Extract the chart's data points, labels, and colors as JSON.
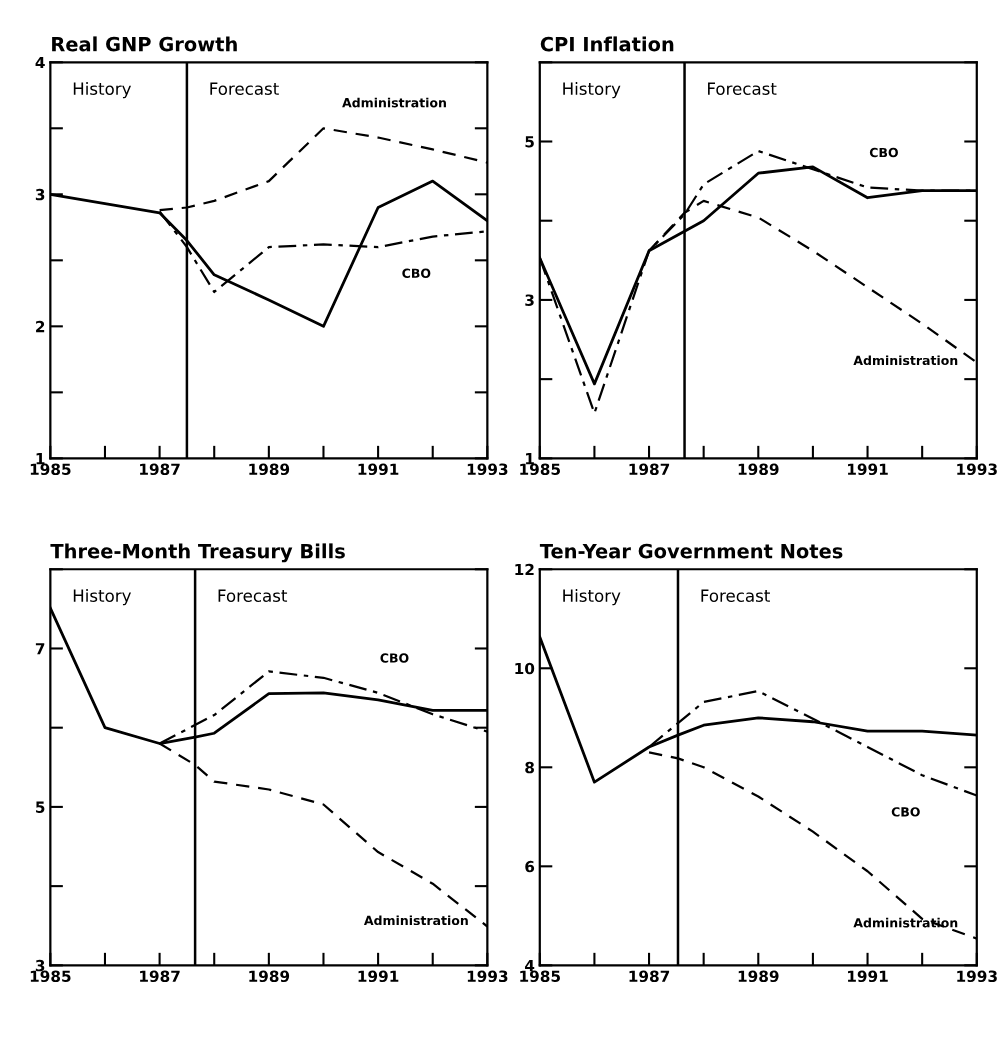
{
  "chart_data": [
    {
      "type": "line",
      "title": "Real GNP Growth",
      "xlim": [
        1985,
        1993
      ],
      "ylim": [
        1,
        4
      ],
      "xticks": [
        1985,
        {
          "value": 1986,
          "label": null
        },
        1987,
        {
          "value": 1988,
          "label": null
        },
        1989,
        {
          "value": 1990,
          "label": null
        },
        1991,
        {
          "value": 1992,
          "label": null
        },
        1993
      ],
      "yticks": [
        1,
        {
          "value": 1.5,
          "label": null
        },
        2,
        {
          "value": 2.5,
          "label": null
        },
        3,
        {
          "value": 3.5,
          "label": null
        },
        4
      ],
      "ref_lines": [
        {
          "axis": "x",
          "value": 1987.5,
          "color": "#000000"
        }
      ],
      "annotations": [
        "History",
        "Forecast"
      ],
      "grid": false,
      "legend": false,
      "series": [
        {
          "color": "#000000",
          "line_style": "solid",
          "x": [
            1985,
            1986,
            1987,
            1987.5,
            1988,
            1989,
            1990,
            1991,
            1992,
            1993
          ],
          "values": [
            3.0,
            2.93,
            2.86,
            2.65,
            2.39,
            2.2,
            2.0,
            2.9,
            3.1,
            2.8
          ]
        },
        {
          "name": "Administration",
          "color": "#000000",
          "line_style": "dashed",
          "x": [
            1987,
            1987.5,
            1988,
            1989,
            1990,
            1991,
            1992,
            1993
          ],
          "values": [
            2.88,
            2.9,
            2.95,
            3.1,
            3.5,
            3.43,
            3.34,
            3.24
          ]
        },
        {
          "name": "CBO",
          "color": "#000000",
          "line_style": "dashdot",
          "x": [
            1987,
            1987.5,
            1988,
            1989,
            1990,
            1991,
            1992,
            1993
          ],
          "values": [
            2.87,
            2.6,
            2.26,
            2.6,
            2.62,
            2.6,
            2.68,
            2.72
          ]
        }
      ]
    },
    {
      "type": "line",
      "title": "CPI Inflation",
      "xlim": [
        1985,
        1993
      ],
      "ylim": [
        1,
        6
      ],
      "xticks": [
        1985,
        {
          "value": 1986,
          "label": null
        },
        1987,
        {
          "value": 1988,
          "label": null
        },
        1989,
        {
          "value": 1990,
          "label": null
        },
        1991,
        {
          "value": 1992,
          "label": null
        },
        1993
      ],
      "yticks": [
        1,
        {
          "value": 2,
          "label": null
        },
        3,
        {
          "value": 4,
          "label": null
        },
        5,
        {
          "value": 6,
          "label": null
        }
      ],
      "ref_lines": [
        {
          "axis": "x",
          "value": 1987.65,
          "color": "#000000"
        }
      ],
      "annotations": [
        "History",
        "Forecast"
      ],
      "grid": false,
      "legend": false,
      "series": [
        {
          "color": "#000000",
          "line_style": "solid",
          "x": [
            1985,
            1986,
            1987,
            1988,
            1989,
            1990,
            1991,
            1992,
            1993
          ],
          "values": [
            3.53,
            1.94,
            3.62,
            4.0,
            4.6,
            4.68,
            4.29,
            4.38,
            4.38
          ]
        },
        {
          "name": "CBO",
          "color": "#000000",
          "line_style": "dashdot",
          "x": [
            1985,
            1986,
            1987,
            1987.65,
            1988,
            1989,
            1990,
            1991,
            1992,
            1993
          ],
          "values": [
            3.53,
            1.57,
            3.62,
            4.08,
            4.46,
            4.88,
            4.65,
            4.42,
            4.38,
            4.38
          ]
        },
        {
          "name": "Administration",
          "color": "#000000",
          "line_style": "dashed",
          "x": [
            1987,
            1987.65,
            1988,
            1989,
            1990,
            1991,
            1992,
            1993
          ],
          "values": [
            3.62,
            4.1,
            4.25,
            4.04,
            3.62,
            3.16,
            2.7,
            2.21
          ]
        }
      ]
    },
    {
      "type": "line",
      "title": "Three-Month Treasury Bills",
      "xlim": [
        1985,
        1993
      ],
      "ylim": [
        3,
        8
      ],
      "xticks": [
        1985,
        {
          "value": 1986,
          "label": null
        },
        1987,
        {
          "value": 1988,
          "label": null
        },
        1989,
        {
          "value": 1990,
          "label": null
        },
        1991,
        {
          "value": 1992,
          "label": null
        },
        1993
      ],
      "yticks": [
        3,
        {
          "value": 4,
          "label": null
        },
        5,
        {
          "value": 6,
          "label": null
        },
        7,
        {
          "value": 8,
          "label": null
        }
      ],
      "ref_lines": [
        {
          "axis": "x",
          "value": 1987.65,
          "color": "#000000"
        }
      ],
      "annotations": [
        "History",
        "Forecast"
      ],
      "grid": false,
      "legend": false,
      "series": [
        {
          "color": "#000000",
          "line_style": "solid",
          "x": [
            1985,
            1986,
            1987,
            1987.65,
            1988,
            1989,
            1990,
            1991,
            1992,
            1993
          ],
          "values": [
            7.51,
            6.0,
            5.8,
            5.88,
            5.93,
            6.43,
            6.44,
            6.35,
            6.22,
            6.22
          ]
        },
        {
          "name": "CBO",
          "color": "#000000",
          "line_style": "dashdot",
          "x": [
            1987,
            1988,
            1989,
            1990,
            1991,
            1992,
            1993
          ],
          "values": [
            5.8,
            6.16,
            6.71,
            6.63,
            6.44,
            6.17,
            5.95
          ]
        },
        {
          "name": "Administration",
          "color": "#000000",
          "line_style": "dashed",
          "x": [
            1987,
            1987.65,
            1988,
            1989,
            1990,
            1991,
            1992,
            1993
          ],
          "values": [
            5.8,
            5.53,
            5.32,
            5.22,
            5.03,
            4.43,
            4.03,
            3.49
          ]
        }
      ]
    },
    {
      "type": "line",
      "title": "Ten-Year Government Notes",
      "xlim": [
        1985,
        1993
      ],
      "ylim": [
        4,
        12
      ],
      "xticks": [
        1985,
        {
          "value": 1986,
          "label": null
        },
        1987,
        {
          "value": 1988,
          "label": null
        },
        1989,
        {
          "value": 1990,
          "label": null
        },
        1991,
        {
          "value": 1992,
          "label": null
        },
        1993
      ],
      "yticks": [
        4,
        6,
        8,
        10,
        12
      ],
      "ref_lines": [
        {
          "axis": "x",
          "value": 1987.53,
          "color": "#000000"
        }
      ],
      "annotations": [
        "History",
        "Forecast"
      ],
      "grid": false,
      "legend": false,
      "series": [
        {
          "color": "#000000",
          "line_style": "solid",
          "x": [
            1985,
            1986,
            1987,
            1987.53,
            1988,
            1989,
            1990,
            1991,
            1992,
            1993
          ],
          "values": [
            10.63,
            7.7,
            8.41,
            8.65,
            8.85,
            9.0,
            8.92,
            8.73,
            8.73,
            8.65
          ]
        },
        {
          "name": "CBO",
          "color": "#000000",
          "line_style": "dashdot",
          "x": [
            1987,
            1988,
            1989,
            1990,
            1991,
            1992,
            1993
          ],
          "values": [
            8.41,
            9.32,
            9.54,
            8.98,
            8.41,
            7.84,
            7.43
          ]
        },
        {
          "name": "Administration",
          "color": "#000000",
          "line_style": "dashed",
          "x": [
            1987,
            1987.53,
            1988,
            1989,
            1990,
            1991,
            1992,
            1993
          ],
          "values": [
            8.3,
            8.18,
            8.0,
            7.41,
            6.7,
            5.9,
            4.94,
            4.54
          ]
        }
      ]
    }
  ]
}
